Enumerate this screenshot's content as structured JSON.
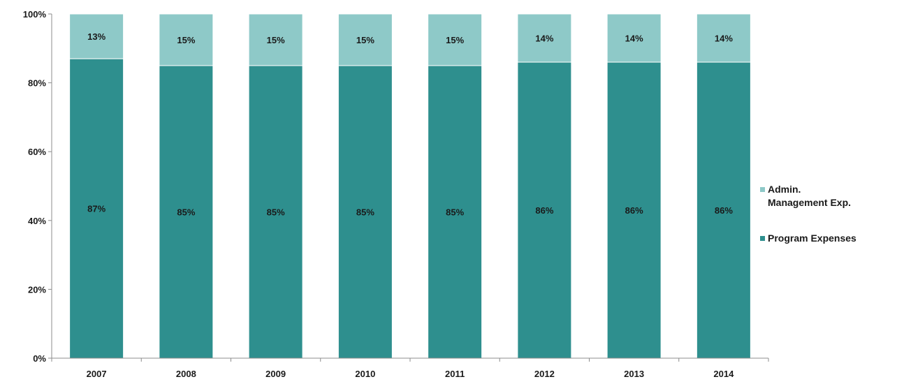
{
  "chart_data": {
    "type": "bar",
    "stacked": true,
    "categories": [
      "2007",
      "2008",
      "2009",
      "2010",
      "2011",
      "2012",
      "2013",
      "2014"
    ],
    "series": [
      {
        "name": "Program Expenses",
        "values": [
          87,
          85,
          85,
          85,
          85,
          86,
          86,
          86
        ],
        "labels": [
          "87%",
          "85%",
          "85%",
          "85%",
          "85%",
          "86%",
          "86%",
          "86%"
        ],
        "color": "#2e8f8e"
      },
      {
        "name": "Admin. Management Exp.",
        "values": [
          13,
          15,
          15,
          15,
          15,
          14,
          14,
          14
        ],
        "labels": [
          "13%",
          "15%",
          "15%",
          "15%",
          "15%",
          "14%",
          "14%",
          "14%"
        ],
        "color": "#8ec9c8"
      }
    ],
    "y_ticks": [
      "0%",
      "20%",
      "40%",
      "60%",
      "80%",
      "100%"
    ],
    "ylim": [
      0,
      100
    ],
    "legend_position": "right",
    "grid": false
  },
  "legend": {
    "admin_label": "Admin.\nManagement Exp.",
    "program_label": "Program Expenses"
  }
}
